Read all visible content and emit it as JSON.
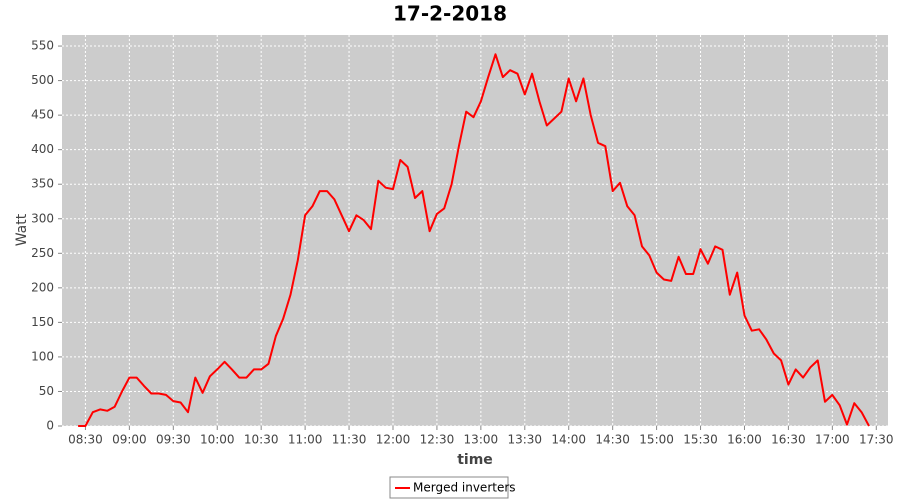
{
  "chart_data": {
    "type": "line",
    "title": "17-2-2018",
    "x_label": "time",
    "y_label": "Watt",
    "x": [
      "08:25",
      "08:30",
      "08:35",
      "08:40",
      "08:45",
      "08:50",
      "08:55",
      "09:00",
      "09:05",
      "09:10",
      "09:15",
      "09:20",
      "09:25",
      "09:30",
      "09:35",
      "09:40",
      "09:45",
      "09:50",
      "09:55",
      "10:00",
      "10:05",
      "10:10",
      "10:15",
      "10:20",
      "10:25",
      "10:30",
      "10:35",
      "10:40",
      "10:45",
      "10:50",
      "10:55",
      "11:00",
      "11:05",
      "11:10",
      "11:15",
      "11:20",
      "11:25",
      "11:30",
      "11:35",
      "11:40",
      "11:45",
      "11:50",
      "11:55",
      "12:00",
      "12:05",
      "12:10",
      "12:15",
      "12:20",
      "12:25",
      "12:30",
      "12:35",
      "12:40",
      "12:45",
      "12:50",
      "12:55",
      "13:00",
      "13:05",
      "13:10",
      "13:15",
      "13:20",
      "13:25",
      "13:30",
      "13:35",
      "13:40",
      "13:45",
      "13:50",
      "13:55",
      "14:00",
      "14:05",
      "14:10",
      "14:15",
      "14:20",
      "14:25",
      "14:30",
      "14:35",
      "14:40",
      "14:45",
      "14:50",
      "14:55",
      "15:00",
      "15:05",
      "15:10",
      "15:15",
      "15:20",
      "15:25",
      "15:30",
      "15:35",
      "15:40",
      "15:45",
      "15:50",
      "15:55",
      "16:00",
      "16:05",
      "16:10",
      "16:15",
      "16:20",
      "16:25",
      "16:30",
      "16:35",
      "16:40",
      "16:45",
      "16:50",
      "16:55",
      "17:00",
      "17:05",
      "17:10",
      "17:15",
      "17:20",
      "17:25"
    ],
    "series": [
      {
        "name": "Merged inverters",
        "color": "#ff0000",
        "values": [
          0,
          0,
          20,
          24,
          22,
          28,
          50,
          70,
          70,
          58,
          47,
          47,
          45,
          36,
          34,
          20,
          70,
          48,
          72,
          82,
          93,
          82,
          70,
          70,
          82,
          82,
          90,
          130,
          155,
          190,
          240,
          305,
          318,
          340,
          340,
          328,
          305,
          282,
          305,
          298,
          285,
          355,
          345,
          343,
          385,
          375,
          330,
          340,
          282,
          307,
          315,
          350,
          405,
          455,
          447,
          470,
          505,
          538,
          505,
          515,
          510,
          480,
          510,
          470,
          435,
          445,
          455,
          503,
          470,
          503,
          450,
          410,
          405,
          340,
          352,
          318,
          305,
          260,
          247,
          222,
          212,
          210,
          245,
          220,
          220,
          256,
          235,
          260,
          255,
          190,
          222,
          160,
          138,
          140,
          125,
          105,
          95,
          60,
          82,
          70,
          85,
          95,
          35,
          45,
          30,
          2,
          33,
          20,
          0
        ]
      }
    ],
    "xlim": [
      "08:14",
      "17:38"
    ],
    "xticks": [
      "08:30",
      "09:00",
      "09:30",
      "10:00",
      "10:30",
      "11:00",
      "11:30",
      "12:00",
      "12:30",
      "13:00",
      "13:30",
      "14:00",
      "14:30",
      "15:00",
      "15:30",
      "16:00",
      "16:30",
      "17:00",
      "17:30"
    ],
    "ylim": [
      0,
      566
    ],
    "yticks": [
      0,
      50,
      100,
      150,
      200,
      250,
      300,
      350,
      400,
      450,
      500,
      550
    ],
    "grid": true,
    "legend": "bottom"
  }
}
